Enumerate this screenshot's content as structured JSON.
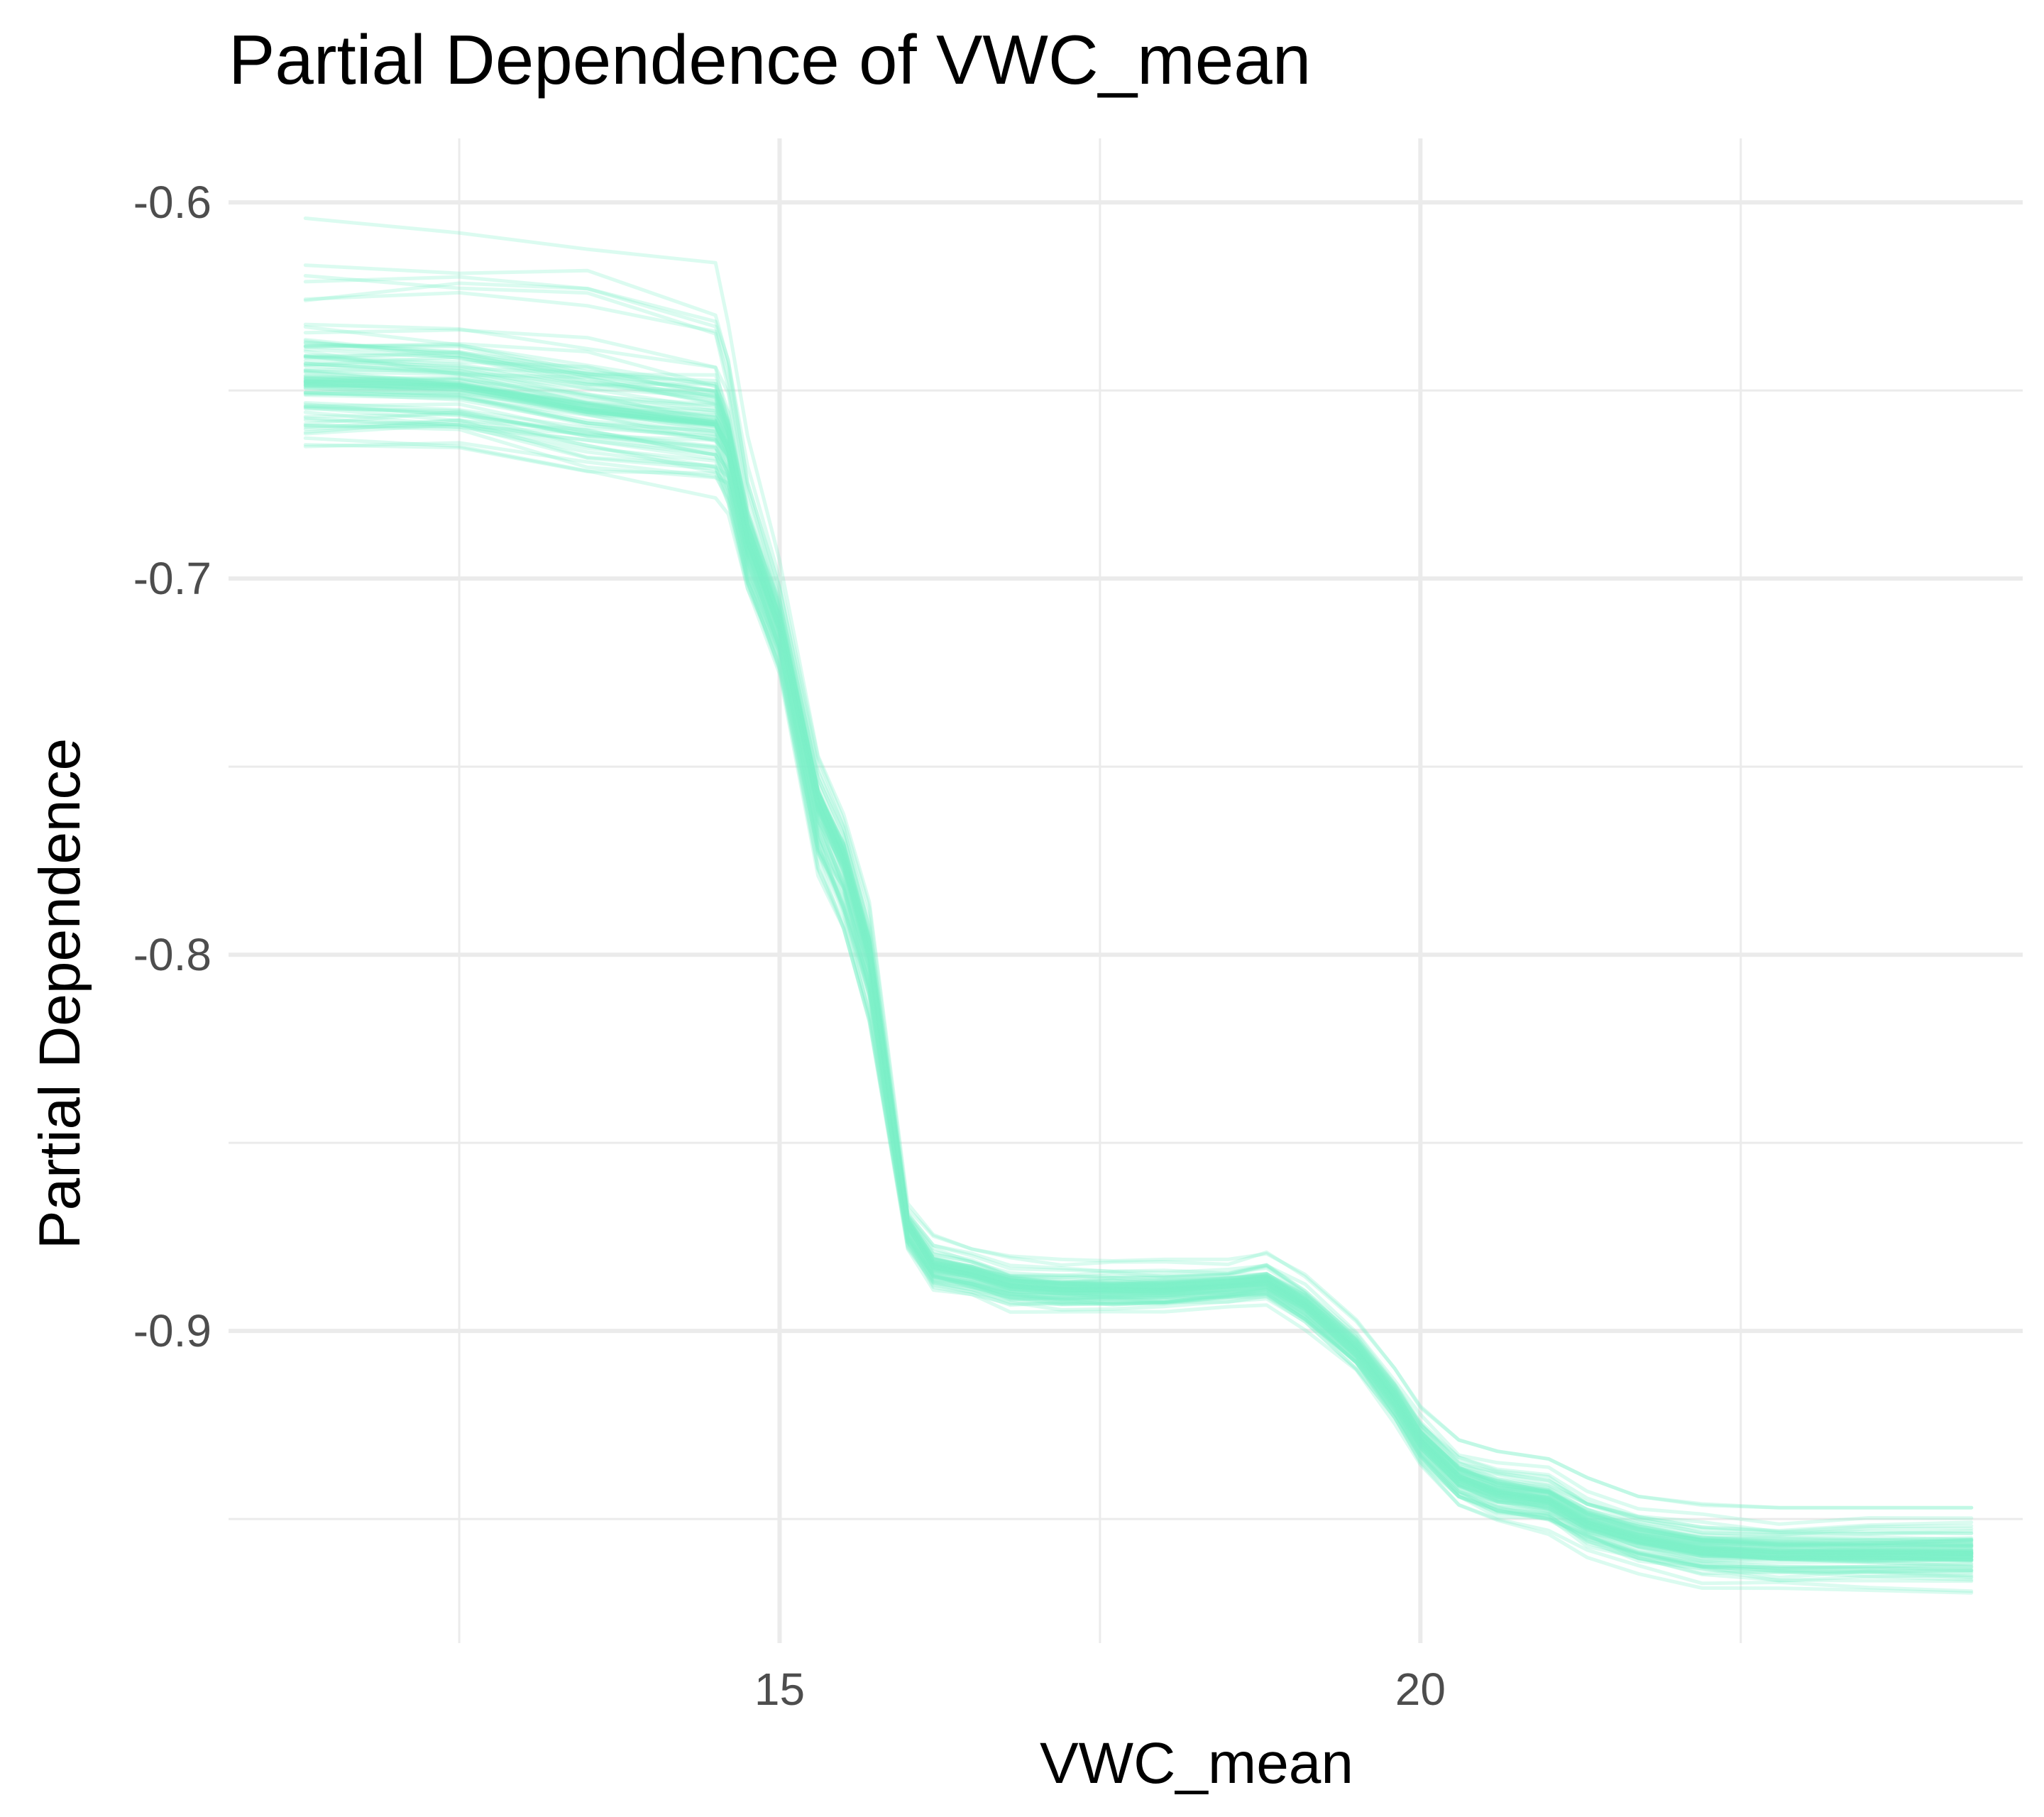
{
  "chart_data": {
    "type": "line",
    "title": "Partial Dependence of VWC_mean",
    "xlabel": "VWC_mean",
    "ylabel": "Partial Dependence",
    "xlim": [
      10.7,
      24.7
    ],
    "ylim": [
      -0.983,
      -0.583
    ],
    "x_ticks": [
      {
        "value": 15,
        "label": "15"
      },
      {
        "value": 20,
        "label": "20"
      }
    ],
    "x_minor_ticks": [
      12.5,
      17.5,
      22.5
    ],
    "y_ticks": [
      {
        "value": -0.6,
        "label": "-0.6"
      },
      {
        "value": -0.7,
        "label": "-0.7"
      },
      {
        "value": -0.8,
        "label": "-0.8"
      },
      {
        "value": -0.9,
        "label": "-0.9"
      }
    ],
    "y_minor_ticks": [
      -0.65,
      -0.75,
      -0.85,
      -0.95
    ],
    "grid": true,
    "legend": "none",
    "line_color": "#7ff2c9",
    "line_opacity": 0.28,
    "curve_count": 90,
    "x": [
      11.3,
      12.5,
      13.5,
      14.5,
      14.6,
      14.75,
      15.0,
      15.3,
      15.5,
      15.7,
      16.0,
      16.2,
      16.5,
      16.8,
      17.2,
      17.6,
      18.0,
      18.5,
      18.8,
      19.1,
      19.5,
      19.8,
      20.0,
      20.3,
      20.6,
      21.0,
      21.3,
      21.7,
      22.2,
      22.8,
      23.5,
      24.3
    ],
    "pd_mean": [
      -0.648,
      -0.649,
      -0.655,
      -0.659,
      -0.666,
      -0.69,
      -0.713,
      -0.76,
      -0.775,
      -0.8,
      -0.872,
      -0.883,
      -0.885,
      -0.888,
      -0.889,
      -0.889,
      -0.889,
      -0.888,
      -0.887,
      -0.893,
      -0.905,
      -0.918,
      -0.929,
      -0.939,
      -0.943,
      -0.945,
      -0.951,
      -0.955,
      -0.958,
      -0.959,
      -0.959,
      -0.959
    ],
    "pd_high": [
      -0.6,
      -0.6,
      -0.602,
      -0.61,
      -0.63,
      -0.662,
      -0.695,
      -0.745,
      -0.76,
      -0.786,
      -0.866,
      -0.874,
      -0.877,
      -0.88,
      -0.881,
      -0.881,
      -0.881,
      -0.881,
      -0.879,
      -0.885,
      -0.897,
      -0.91,
      -0.92,
      -0.929,
      -0.932,
      -0.934,
      -0.939,
      -0.944,
      -0.946,
      -0.947,
      -0.947,
      -0.947
    ],
    "pd_low": [
      -0.682,
      -0.682,
      -0.688,
      -0.692,
      -0.694,
      -0.716,
      -0.738,
      -0.795,
      -0.81,
      -0.834,
      -0.884,
      -0.893,
      -0.895,
      -0.898,
      -0.898,
      -0.898,
      -0.898,
      -0.896,
      -0.895,
      -0.902,
      -0.914,
      -0.928,
      -0.939,
      -0.95,
      -0.954,
      -0.956,
      -0.962,
      -0.967,
      -0.97,
      -0.971,
      -0.971,
      -0.971
    ]
  }
}
